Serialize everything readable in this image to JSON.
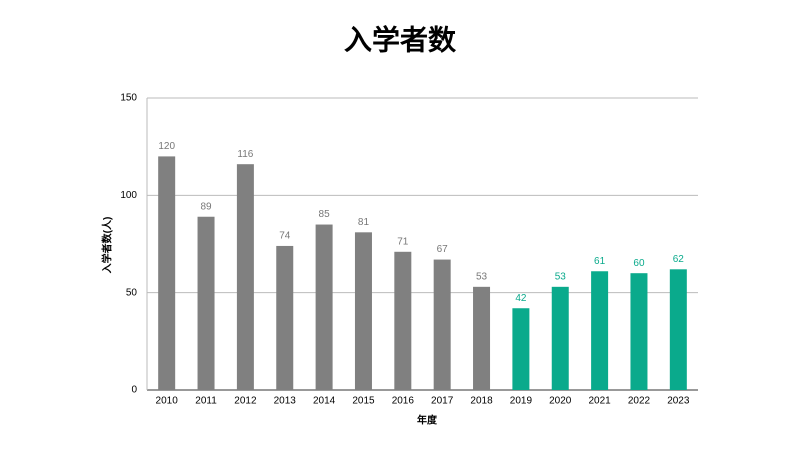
{
  "chart_data": {
    "type": "bar",
    "title": "入学者数",
    "x_label": "年度",
    "y_label": "入学者数(人)",
    "categories": [
      "2010",
      "2011",
      "2012",
      "2013",
      "2014",
      "2015",
      "2016",
      "2017",
      "2018",
      "2019",
      "2020",
      "2021",
      "2022",
      "2023"
    ],
    "values": [
      120,
      89,
      116,
      74,
      85,
      81,
      71,
      67,
      53,
      42,
      53,
      61,
      60,
      62
    ],
    "colors": [
      "#808080",
      "#808080",
      "#808080",
      "#808080",
      "#808080",
      "#808080",
      "#808080",
      "#808080",
      "#808080",
      "#0aaa8c",
      "#0aaa8c",
      "#0aaa8c",
      "#0aaa8c",
      "#0aaa8c"
    ],
    "ylim": [
      0,
      150
    ],
    "yticks": [
      0,
      50,
      100,
      150
    ],
    "grid": true,
    "data_labels": true
  }
}
